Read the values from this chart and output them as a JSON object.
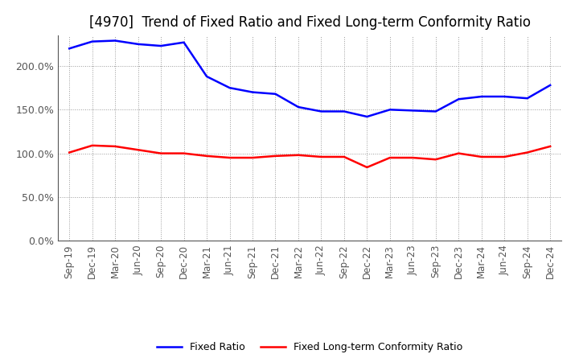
{
  "title": "[4970]  Trend of Fixed Ratio and Fixed Long-term Conformity Ratio",
  "labels": [
    "Sep-19",
    "Dec-19",
    "Mar-20",
    "Jun-20",
    "Sep-20",
    "Dec-20",
    "Mar-21",
    "Jun-21",
    "Sep-21",
    "Dec-21",
    "Mar-22",
    "Jun-22",
    "Sep-22",
    "Dec-22",
    "Mar-23",
    "Jun-23",
    "Sep-23",
    "Dec-23",
    "Mar-24",
    "Jun-24",
    "Sep-24",
    "Dec-24"
  ],
  "fixed_ratio": [
    220,
    228,
    229,
    225,
    223,
    227,
    188,
    175,
    170,
    168,
    153,
    148,
    148,
    142,
    150,
    149,
    148,
    162,
    165,
    165,
    163,
    178
  ],
  "fixed_lt_ratio": [
    101,
    109,
    108,
    104,
    100,
    100,
    97,
    95,
    95,
    97,
    98,
    96,
    96,
    84,
    95,
    95,
    93,
    100,
    96,
    96,
    101,
    108
  ],
  "fixed_ratio_color": "#0000FF",
  "fixed_lt_ratio_color": "#FF0000",
  "ylim": [
    0,
    235
  ],
  "yticks": [
    0,
    50,
    100,
    150,
    200
  ],
  "ytick_labels": [
    "0.0%",
    "50.0%",
    "100.0%",
    "150.0%",
    "200.0%"
  ],
  "background_color": "#FFFFFF",
  "plot_bg_color": "#FFFFFF",
  "grid_color": "#999999",
  "legend_fixed_ratio": "Fixed Ratio",
  "legend_fixed_lt_ratio": "Fixed Long-term Conformity Ratio",
  "title_fontsize": 12,
  "axis_label_fontsize": 8.5,
  "ytick_fontsize": 9,
  "line_width": 1.8
}
